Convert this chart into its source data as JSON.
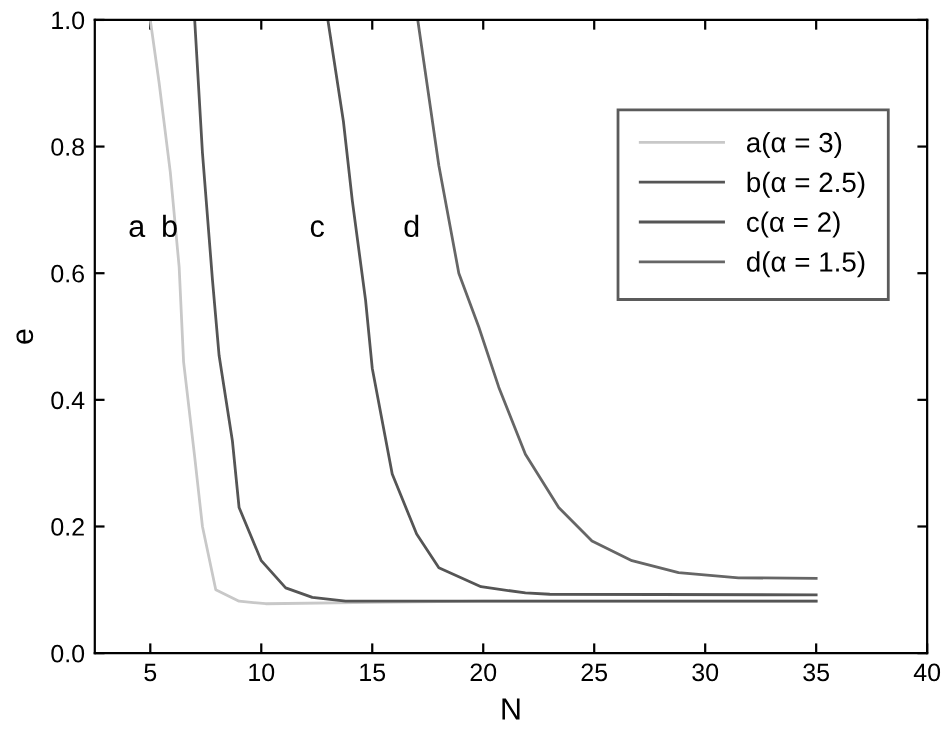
{
  "chart_data": {
    "type": "line",
    "xlabel": "N",
    "ylabel": "e",
    "xlim": [
      2.5,
      40
    ],
    "ylim": [
      0,
      1
    ],
    "xticks": [
      5,
      10,
      15,
      20,
      25,
      30,
      35,
      40
    ],
    "yticks": [
      {
        "value": 0,
        "label": "0.0"
      },
      0.2,
      0.4,
      0.6,
      0.8,
      {
        "value": 1,
        "label": "1.0"
      }
    ],
    "grid": false,
    "legend": "top right",
    "marker": "none",
    "line_style": "solid",
    "series": [
      {
        "name": "a(α = 3)",
        "color": "#c8c8c8",
        "x": [
          5,
          5.4,
          5.9,
          6.3,
          6.5,
          7.0,
          7.35,
          7.95,
          9.0,
          10.2,
          15,
          20,
          35
        ],
        "values": [
          1.0,
          0.9,
          0.76,
          0.61,
          0.46,
          0.31,
          0.2,
          0.1,
          0.082,
          0.078,
          0.08,
          0.082,
          0.082
        ]
      },
      {
        "name": "b(α = 2.5)",
        "color": "#555555",
        "x": [
          7.0,
          7.35,
          7.8,
          8.1,
          8.7,
          9.0,
          10.0,
          11.1,
          12.3,
          13.8,
          20,
          35
        ],
        "values": [
          1.0,
          0.79,
          0.59,
          0.47,
          0.335,
          0.23,
          0.146,
          0.103,
          0.088,
          0.082,
          0.082,
          0.082
        ]
      },
      {
        "name": "c(α = 2)",
        "color": "#555555",
        "x": [
          13.0,
          13.7,
          14.1,
          14.7,
          15.0,
          15.9,
          17.0,
          18.0,
          19.9,
          21.9,
          23,
          35
        ],
        "values": [
          1.0,
          0.84,
          0.715,
          0.557,
          0.45,
          0.283,
          0.188,
          0.135,
          0.105,
          0.095,
          0.093,
          0.092
        ]
      },
      {
        "name": "d(α = 1.5)",
        "color": "#666666",
        "x": [
          17.05,
          18.0,
          18.9,
          19.8,
          20.7,
          21.9,
          23.4,
          24.9,
          26.7,
          28.8,
          31.5,
          35
        ],
        "values": [
          1.0,
          0.77,
          0.6,
          0.515,
          0.42,
          0.314,
          0.23,
          0.177,
          0.146,
          0.127,
          0.119,
          0.118
        ]
      }
    ],
    "annotations": [
      "a",
      "b",
      "c",
      "d"
    ]
  }
}
